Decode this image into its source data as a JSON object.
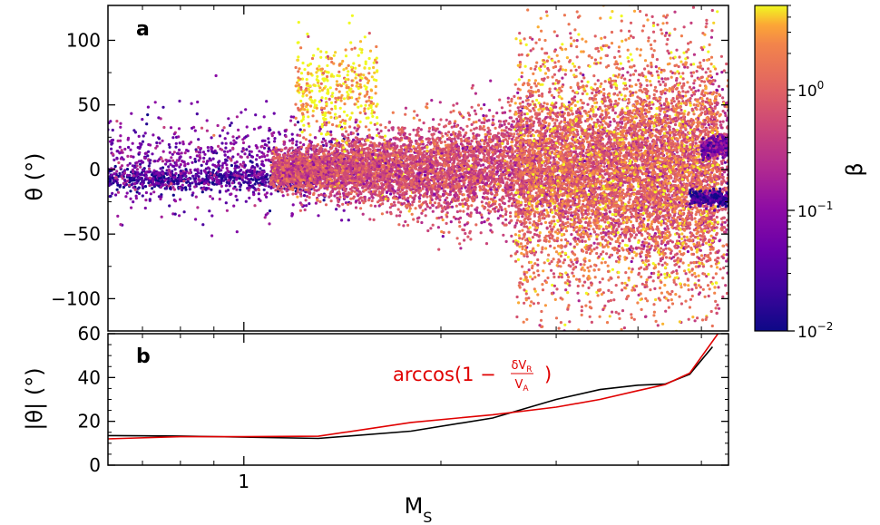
{
  "chart_data": [
    {
      "type": "scatter",
      "panel_label": "a",
      "ylabel": "θ (°)",
      "ylim": [
        -125,
        127
      ],
      "xscale": "log",
      "xlim": [
        0.62,
        5.5
      ],
      "yticks": [
        100,
        50,
        0,
        -50,
        -100
      ],
      "colorbar": {
        "label": "β",
        "scale": "log",
        "range": [
          0.01,
          5
        ],
        "colormap": "plasma",
        "ticks": [
          {
            "value": 1,
            "label_base": "10",
            "label_exp": "0"
          },
          {
            "value": 0.1,
            "label_base": "10",
            "label_exp": "−1"
          },
          {
            "value": 0.01,
            "label_base": "10",
            "label_exp": "−2"
          }
        ]
      },
      "point_clouds": [
        {
          "x_range": [
            0.62,
            1.3
          ],
          "y_center": -7,
          "y_spread": 7,
          "beta": 0.02,
          "count": 700
        },
        {
          "x_range": [
            0.62,
            1.5
          ],
          "y_center": 5,
          "y_spread": 30,
          "beta": 0.08,
          "count": 900
        },
        {
          "x_range": [
            1.1,
            5.5
          ],
          "y_center": 0,
          "y_spread": 45,
          "beta": 0.6,
          "count": 9000
        },
        {
          "x_range": [
            2.6,
            5.3
          ],
          "y_center": -5,
          "y_spread": 90,
          "beta": 1.5,
          "count": 4000
        },
        {
          "x_range": [
            1.2,
            1.6
          ],
          "y_center": 60,
          "y_spread": 30,
          "beta": 4,
          "count": 400
        },
        {
          "x_range": [
            5.0,
            5.5
          ],
          "y_center": 17,
          "y_spread": 6,
          "beta": 0.07,
          "count": 300
        },
        {
          "x_range": [
            4.8,
            5.5
          ],
          "y_center": -22,
          "y_spread": 5,
          "beta": 0.02,
          "count": 250
        }
      ]
    },
    {
      "type": "line",
      "panel_label": "b",
      "xlabel": "M_S",
      "ylabel": "|θ| (°)",
      "xscale": "log",
      "xlim": [
        0.62,
        5.5
      ],
      "ylim": [
        0,
        60
      ],
      "yticks": [
        60,
        40,
        20,
        0
      ],
      "xticks": [
        {
          "value": 1,
          "label": "1"
        }
      ],
      "annotation": {
        "text_main": "arccos(1 − ",
        "numerator": "δV",
        "numerator_sub": "R",
        "denominator": "V",
        "denominator_sub": "A",
        "text_close": ")",
        "color": "#e00000"
      },
      "series": [
        {
          "color": "#000000",
          "x": [
            0.62,
            0.8,
            1.0,
            1.3,
            1.8,
            2.4,
            3.0,
            3.5,
            4.0,
            4.4,
            4.8,
            5.2
          ],
          "y": [
            13.5,
            13.3,
            12.8,
            12.2,
            15.5,
            21.5,
            30.0,
            34.5,
            36.5,
            37.0,
            41.5,
            54.0
          ]
        },
        {
          "color": "#e00000",
          "x": [
            0.62,
            0.8,
            1.0,
            1.3,
            1.8,
            2.4,
            3.0,
            3.5,
            4.0,
            4.4,
            4.8,
            5.3
          ],
          "y": [
            12.0,
            13.0,
            13.0,
            13.2,
            19.5,
            23.0,
            26.5,
            30.0,
            34.0,
            36.8,
            42.0,
            60.0
          ]
        }
      ]
    }
  ]
}
